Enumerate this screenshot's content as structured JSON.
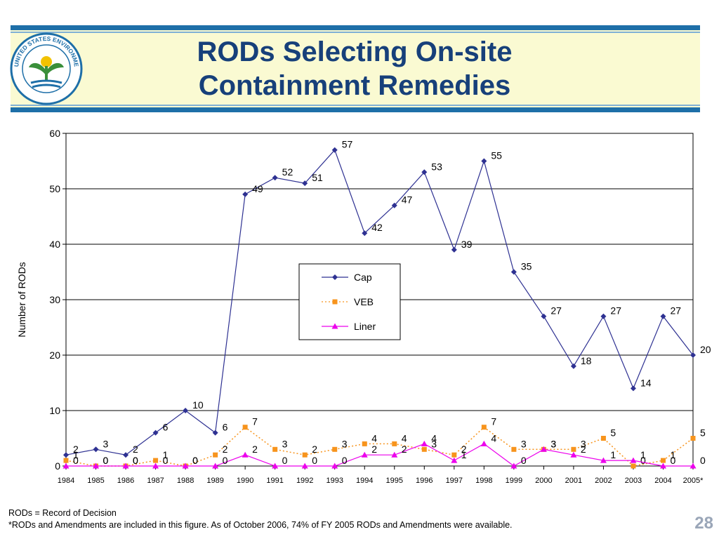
{
  "slide": {
    "title_line1": "RODs Selecting On-site",
    "title_line2": "Containment Remedies",
    "logo_text": "UNITED STATES ENVIRONMENTAL PROTECTION AGENCY",
    "footnote1": "RODs = Record of Decision",
    "footnote2": "*RODs and Amendments are included in this figure.  As of October 2006, 74% of FY 2005 RODs and Amendments were available.",
    "page_number": "28"
  },
  "colors": {
    "title": "#17407a",
    "band": "#fafad2",
    "band_border": "#1e6fa8",
    "cap": "#2e3192",
    "veb": "#f7941d",
    "liner": "#ec00ec"
  },
  "chart_data": {
    "type": "line",
    "title": "",
    "xlabel": "",
    "ylabel": "Number of RODs",
    "ylim": [
      0,
      60
    ],
    "yticks": [
      0,
      10,
      20,
      30,
      40,
      50,
      60
    ],
    "grid": true,
    "legend_position": "center",
    "categories": [
      "1984",
      "1985",
      "1986",
      "1987",
      "1988",
      "1989",
      "1990",
      "1991",
      "1992",
      "1993",
      "1994",
      "1995",
      "1996",
      "1997",
      "1998",
      "1999",
      "2000",
      "2001",
      "2002",
      "2003",
      "2004",
      "2005*"
    ],
    "series": [
      {
        "name": "Cap",
        "marker": "diamond",
        "line": "solid",
        "color": "#2e3192",
        "values": [
          2,
          3,
          2,
          6,
          10,
          6,
          49,
          52,
          51,
          57,
          42,
          47,
          53,
          39,
          55,
          35,
          27,
          18,
          27,
          14,
          27,
          20
        ]
      },
      {
        "name": "VEB",
        "marker": "square",
        "line": "dotted",
        "color": "#f7941d",
        "values": [
          1,
          0,
          0,
          1,
          0,
          2,
          7,
          3,
          2,
          3,
          4,
          4,
          3,
          2,
          7,
          3,
          3,
          3,
          5,
          0,
          1,
          5
        ]
      },
      {
        "name": "Liner",
        "marker": "triangle",
        "line": "solid",
        "color": "#ec00ec",
        "values": [
          0,
          0,
          0,
          0,
          0,
          0,
          2,
          0,
          0,
          0,
          2,
          2,
          4,
          1,
          4,
          0,
          3,
          2,
          1,
          1,
          0,
          0
        ]
      }
    ]
  }
}
